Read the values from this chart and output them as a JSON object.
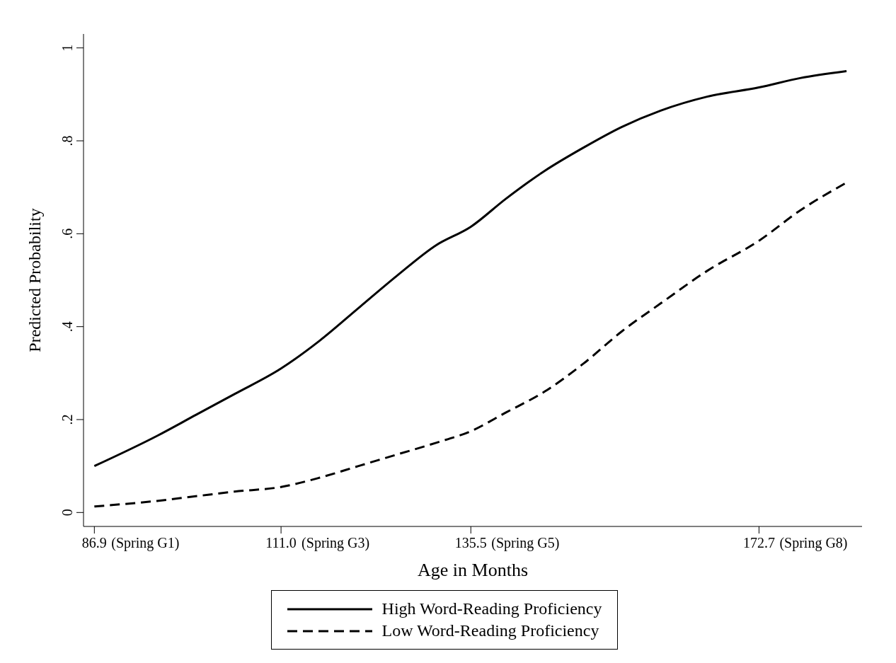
{
  "chart_data": {
    "type": "line",
    "xlabel": "Age in Months",
    "ylabel": "Predicted Probability",
    "x": [
      86.9,
      95,
      100,
      105,
      111,
      116,
      121,
      126,
      131,
      135.5,
      140,
      145,
      150,
      155,
      160,
      166,
      172.7,
      178,
      184
    ],
    "series": [
      {
        "name": "High Word-Reading Proficiency",
        "color": "#000000",
        "line_style": "solid",
        "values": [
          0.1,
          0.165,
          0.21,
          0.255,
          0.31,
          0.37,
          0.44,
          0.51,
          0.575,
          0.615,
          0.675,
          0.735,
          0.785,
          0.83,
          0.865,
          0.895,
          0.915,
          0.935,
          0.95
        ]
      },
      {
        "name": "Low Word-Reading Proficiency",
        "color": "#000000",
        "line_style": "dashed",
        "values": [
          0.013,
          0.025,
          0.035,
          0.045,
          0.055,
          0.075,
          0.1,
          0.125,
          0.15,
          0.175,
          0.215,
          0.26,
          0.32,
          0.39,
          0.45,
          0.52,
          0.585,
          0.65,
          0.71
        ]
      }
    ],
    "xlim": [
      85.5,
      186
    ],
    "xticks": [
      86.9,
      {
        "value": 111.0,
        "label": "111.0"
      },
      135.5,
      172.7
    ],
    "annotations": [
      "(Spring G1)",
      "(Spring G3)",
      "(Spring G5)",
      "(Spring G8)"
    ],
    "ylim": [
      -0.03,
      1.03
    ],
    "yticks": [
      0,
      {
        "value": 0.2,
        "label": ".2"
      },
      {
        "value": 0.4,
        "label": ".4"
      },
      {
        "value": 0.6,
        "label": ".6"
      },
      {
        "value": 0.8,
        "label": ".8"
      },
      1
    ],
    "grid": false,
    "legend": "bottom",
    "marker": "none"
  }
}
